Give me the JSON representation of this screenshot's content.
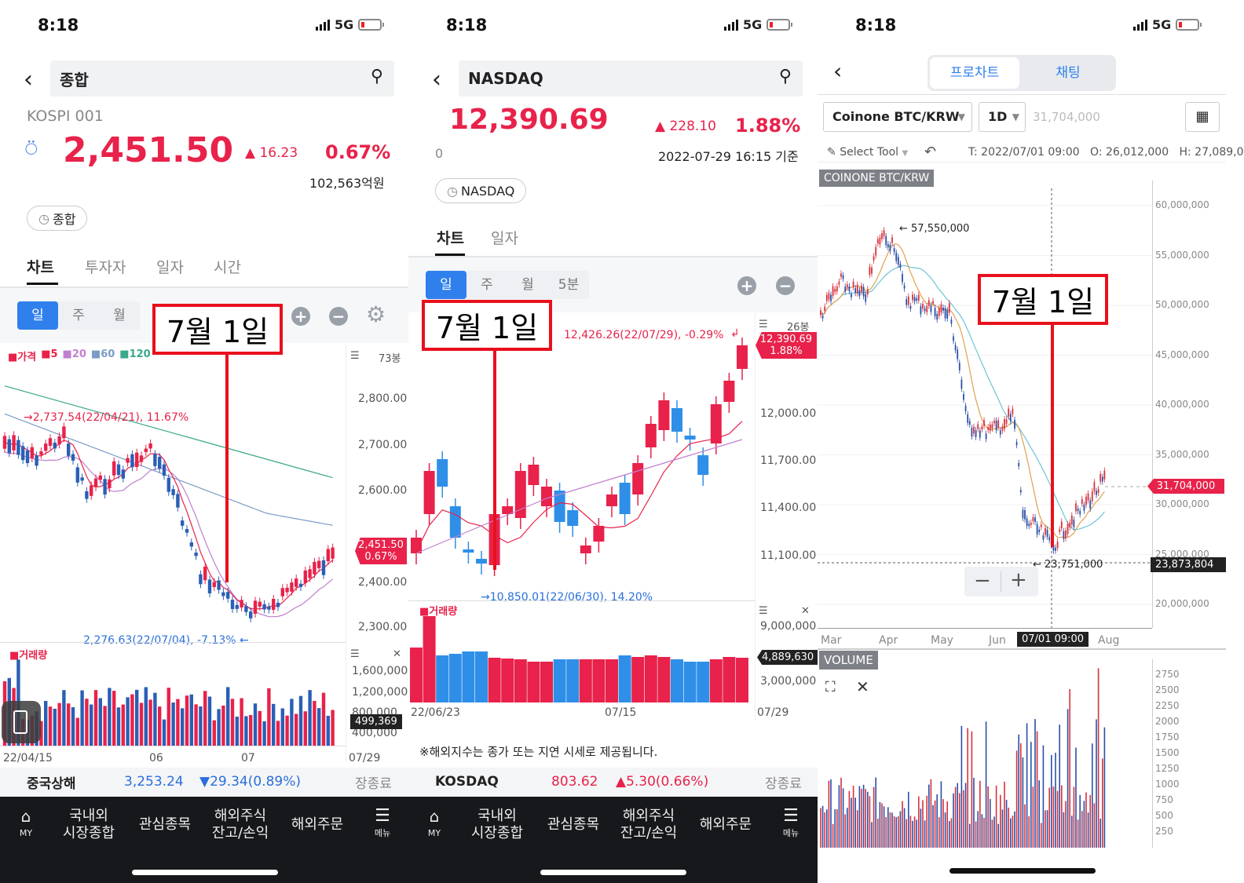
{
  "status": {
    "time": "8:18",
    "network": "5G"
  },
  "panel1": {
    "search": {
      "text": "종합"
    },
    "index_code": "KOSPI 001",
    "price": "2,451.50",
    "change": "▲ 16.23",
    "pct": "0.67%",
    "volume_text": "102,563억원",
    "chip": "종합",
    "tabs": [
      "차트",
      "투자자",
      "일자",
      "시간"
    ],
    "periods": [
      "일",
      "주",
      "월"
    ],
    "legend": [
      {
        "label": "가격",
        "color": "#e8224a"
      },
      {
        "label": "5",
        "color": "#e8224a"
      },
      {
        "label": "20",
        "color": "#c080d0"
      },
      {
        "label": "60",
        "color": "#7a9cc6"
      },
      {
        "label": "120",
        "color": "#3aa88a"
      }
    ],
    "candle_count": "73봉",
    "y_ticks": [
      "2,800.00",
      "2,700.00",
      "2,600.00",
      "2,400.00",
      "2,300.00"
    ],
    "high_note": "→2,737.54(22/04/21), 11.67%",
    "low_note": "2,276.63(22/07/04), -7.13% ←",
    "last_tag": [
      "2,451.50",
      "0.67%"
    ],
    "volume_label": "거래량",
    "vol_ticks": [
      "1,600,000",
      "1,200,000",
      "800,000",
      "400,000"
    ],
    "vol_last": "499,369",
    "x_ticks": [
      "22/04/15",
      "06",
      "07",
      "07/29"
    ],
    "ticker": {
      "name": "중국상해",
      "value": "3,253.24",
      "change": "▼29.34(0.89%)",
      "state": "장종료"
    },
    "callout": "7월 1일"
  },
  "panel2": {
    "search": {
      "text": "NASDAQ"
    },
    "price": "12,390.69",
    "change": "▲ 228.10",
    "pct": "1.88%",
    "zero": "0",
    "timestamp": "2022-07-29 16:15 기준",
    "chip": "NASDAQ",
    "tabs": [
      "차트",
      "일자"
    ],
    "periods": [
      "일",
      "주",
      "월",
      "5분"
    ],
    "candle_count": "26봉",
    "high_note": "12,426.26(22/07/29), -0.29%",
    "low_note": "→10,850.01(22/06/30), 14.20%",
    "last_tag": [
      "12,390.69",
      "1.88%"
    ],
    "y_ticks": [
      "12,000.00",
      "11,700.00",
      "11,400.00",
      "11,100.00"
    ],
    "volume_label": "거래량",
    "vol_ticks": [
      "9,000,000",
      "3,000,000"
    ],
    "vol_last": "4,889,630",
    "x_ticks": [
      "22/06/23",
      "07/15",
      "07/29"
    ],
    "note": "※해외지수는 종가 또는 지연 시세로 제공됩니다.",
    "ticker": {
      "name": "KOSDAQ",
      "value": "803.62",
      "change": "▲5.30(0.66%)",
      "state": "장종료"
    },
    "callout": "7월 1일"
  },
  "panel3": {
    "tabs": [
      "프로차트",
      "채팅"
    ],
    "symbol": "Coinone BTC/KRW",
    "interval": "1D",
    "price_input": "31,704,000",
    "select_tool": "Select Tool",
    "ohlc": "T: 2022/07/01 09:00   O: 26,012,000   H: 27,089,0",
    "chart_title": "COINONE BTC/KRW",
    "high_note": "← 57,550,000",
    "low_note": "← 23,751,000",
    "y_ticks": [
      "60,000,000",
      "55,000,000",
      "50,000,000",
      "45,000,000",
      "40,000,000",
      "35,000,000",
      "30,000,000",
      "25,000,000",
      "20,000,000"
    ],
    "last_tag": "31,704,000",
    "cross_tag": "23,873,804",
    "x_ticks": [
      "Mar",
      "Apr",
      "May",
      "Jun",
      "Aug"
    ],
    "x_cursor": "07/01 09:00",
    "volume_title": "VOLUME",
    "vol_ticks": [
      "2750",
      "2500",
      "2250",
      "2000",
      "1750",
      "1500",
      "1250",
      "1000",
      "750",
      "500",
      "250"
    ],
    "callout": "7월 1일"
  },
  "nav": {
    "home": "MY",
    "items": [
      "국내외\n시장종합",
      "관심종목",
      "해외주식\n잔고/손익",
      "해외주문"
    ],
    "menu": "메뉴"
  }
}
